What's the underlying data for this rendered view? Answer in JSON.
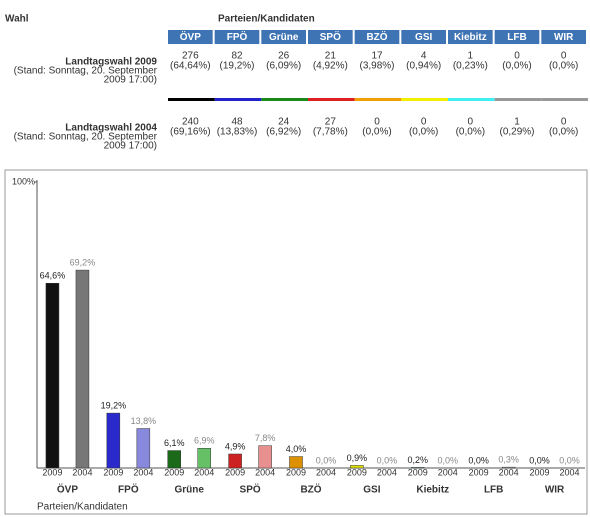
{
  "table": {
    "wahl_header": "Wahl",
    "parties_header": "Parteien/Kandidaten",
    "header_color": "#3f74b4",
    "stripe_colors": [
      "#000000",
      "#2222cc",
      "#1a8a1a",
      "#dd2020",
      "#f0a000",
      "#f0f000",
      "#40f0f0",
      "#999999",
      "#999999"
    ],
    "rows": [
      {
        "name": "Landtagswahl 2009",
        "stand": [
          "(Stand: Sonntag, 20. September",
          "2009 17:00)"
        ],
        "cells": [
          [
            "276",
            "(64,64%)"
          ],
          [
            "82",
            "(19,2%)"
          ],
          [
            "26",
            "(6,09%)"
          ],
          [
            "21",
            "(4,92%)"
          ],
          [
            "17",
            "(3,98%)"
          ],
          [
            "4",
            "(0,94%)"
          ],
          [
            "1",
            "(0,23%)"
          ],
          [
            "0",
            "(0,0%)"
          ],
          [
            "0",
            "(0,0%)"
          ]
        ]
      },
      {
        "name": "Landtagswahl 2004",
        "stand": [
          "(Stand: Sonntag, 20. September",
          "2009 17:00)"
        ],
        "cells": [
          [
            "240",
            "(69,16%)"
          ],
          [
            "48",
            "(13,83%)"
          ],
          [
            "24",
            "(6,92%)"
          ],
          [
            "27",
            "(7,78%)"
          ],
          [
            "0",
            "(0,0%)"
          ],
          [
            "0",
            "(0,0%)"
          ],
          [
            "0",
            "(0,0%)"
          ],
          [
            "1",
            "(0,29%)"
          ],
          [
            "0",
            "(0,0%)"
          ]
        ]
      }
    ]
  },
  "chart_data": {
    "type": "bar",
    "x_label": "Parteien/Kandidaten",
    "categories": [
      "ÖVP",
      "FPÖ",
      "Grüne",
      "SPÖ",
      "BZÖ",
      "GSI",
      "Kiebitz",
      "LFB",
      "WIR"
    ],
    "ylim": [
      0,
      100
    ],
    "yticks": [
      {
        "value": 100,
        "label": "100%"
      }
    ],
    "series": [
      {
        "name": "2009",
        "colors": [
          "#111111",
          "#2a2acc",
          "#1a6a1a",
          "#cc2222",
          "#dd9000",
          "#e0e000",
          "#40d8e0",
          "#888888",
          "#777777"
        ],
        "values": [
          64.6,
          19.2,
          6.1,
          4.9,
          4.0,
          0.9,
          0.2,
          0.0,
          0.0
        ],
        "value_labels": [
          "64,6%",
          "19,2%",
          "6,1%",
          "4,9%",
          "4,0%",
          "0,9%",
          "0,2%",
          "0,0%",
          "0,0%"
        ]
      },
      {
        "name": "2004",
        "colors": [
          "#777777",
          "#8888dd",
          "#66c066",
          "#e89090",
          "#f0c060",
          "#f0f080",
          "#a0f0f0",
          "#bbbbbb",
          "#aaaaaa"
        ],
        "values": [
          69.2,
          13.8,
          6.9,
          7.8,
          0.0,
          0.0,
          0.0,
          0.3,
          0.0
        ],
        "value_labels": [
          "69,2%",
          "13,8%",
          "6,9%",
          "7,8%",
          "0,0%",
          "0,0%",
          "0,0%",
          "0,3%",
          "0,0%"
        ]
      }
    ]
  }
}
